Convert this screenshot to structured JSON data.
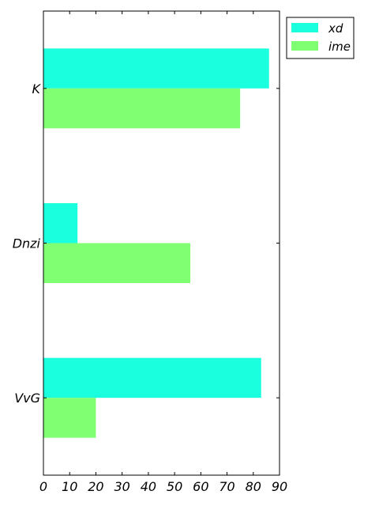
{
  "chart_data": {
    "type": "bar",
    "orientation": "horizontal",
    "categories": [
      "K",
      "Dnzi",
      "VvG"
    ],
    "series": [
      {
        "name": "xd",
        "color": "#1affdd",
        "values": [
          86,
          13,
          83
        ]
      },
      {
        "name": "ime",
        "color": "#80ff73",
        "values": [
          75,
          56,
          20
        ]
      }
    ],
    "xlim": [
      0,
      90
    ],
    "xticks": [
      0,
      10,
      20,
      30,
      40,
      50,
      60,
      70,
      80,
      90
    ],
    "title": "",
    "xlabel": "",
    "ylabel": "",
    "grid": false,
    "legend_position": "outside-top-right"
  }
}
